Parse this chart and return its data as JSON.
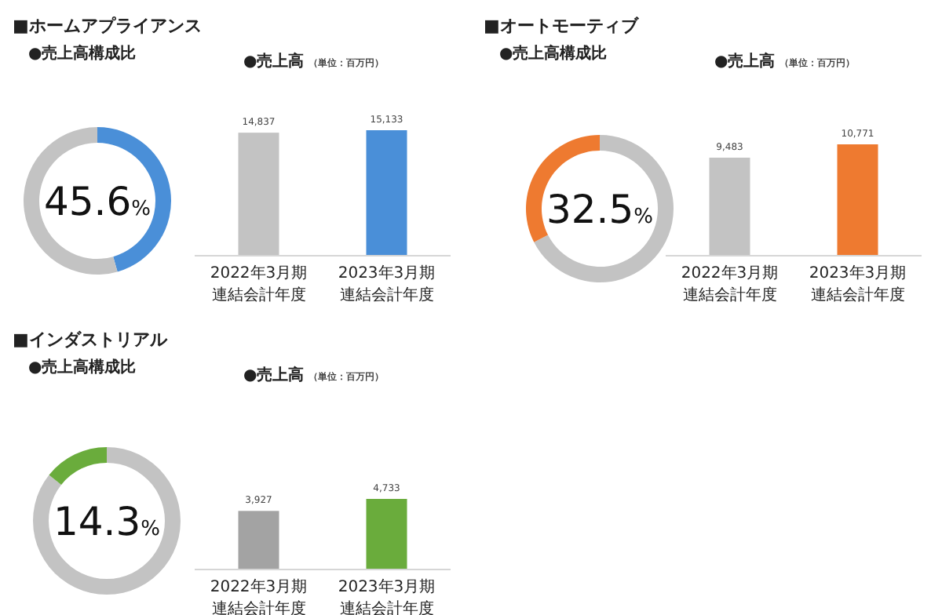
{
  "chart_data": [
    {
      "type": "donut",
      "title": "■ホームアプライアンス",
      "subtitle": "●売上高構成比",
      "categories": [
        null,
        null
      ],
      "values": [
        45.6,
        54.4
      ],
      "colors": [
        "#4a8fd8",
        "#c3c3c3"
      ],
      "annotations": [
        "45.6%"
      ]
    },
    {
      "type": "bar",
      "title": "●売上高",
      "subtitle": "（単位：百万円）",
      "categories": [
        "2022年3月期連結会計年度",
        "2023年3月期連結会計年度"
      ],
      "values": [
        14837,
        15133
      ],
      "colors": [
        "#c3c3c3",
        "#4a8fd8"
      ],
      "value_labels": [
        "14,837",
        "15,133"
      ]
    },
    {
      "type": "donut",
      "title": "■オートモーティブ",
      "subtitle": "●売上高構成比",
      "categories": [
        null,
        null
      ],
      "values": [
        67.5,
        32.5
      ],
      "colors": [
        "#c3c3c3",
        "#ee7a30"
      ],
      "annotations": [
        "32.5%"
      ]
    },
    {
      "type": "bar",
      "title": "●売上高",
      "subtitle": "（単位：百万円）",
      "categories": [
        "2022年3月期連結会計年度",
        "2023年3月期連結会計年度"
      ],
      "values": [
        9483,
        10771
      ],
      "colors": [
        "#c3c3c3",
        "#ee7a30"
      ],
      "value_labels": [
        "9,483",
        "10,771"
      ]
    },
    {
      "type": "donut",
      "title": "■インダストリアル",
      "subtitle": "●売上高構成比",
      "categories": [
        null,
        null
      ],
      "values": [
        85.7,
        14.3
      ],
      "colors": [
        "#c3c3c3",
        "#6aac3c"
      ],
      "annotations": [
        "14.3%"
      ]
    },
    {
      "type": "bar",
      "title": "●売上高",
      "subtitle": "（単位：百万円）",
      "categories": [
        "2022年3月期連結会計年度",
        "2023年3月期連結会計年度"
      ],
      "values": [
        3927,
        4733
      ],
      "colors": [
        "#a3a3a3",
        "#6aac3c"
      ],
      "value_labels": [
        "3,927",
        "4,733"
      ]
    }
  ]
}
